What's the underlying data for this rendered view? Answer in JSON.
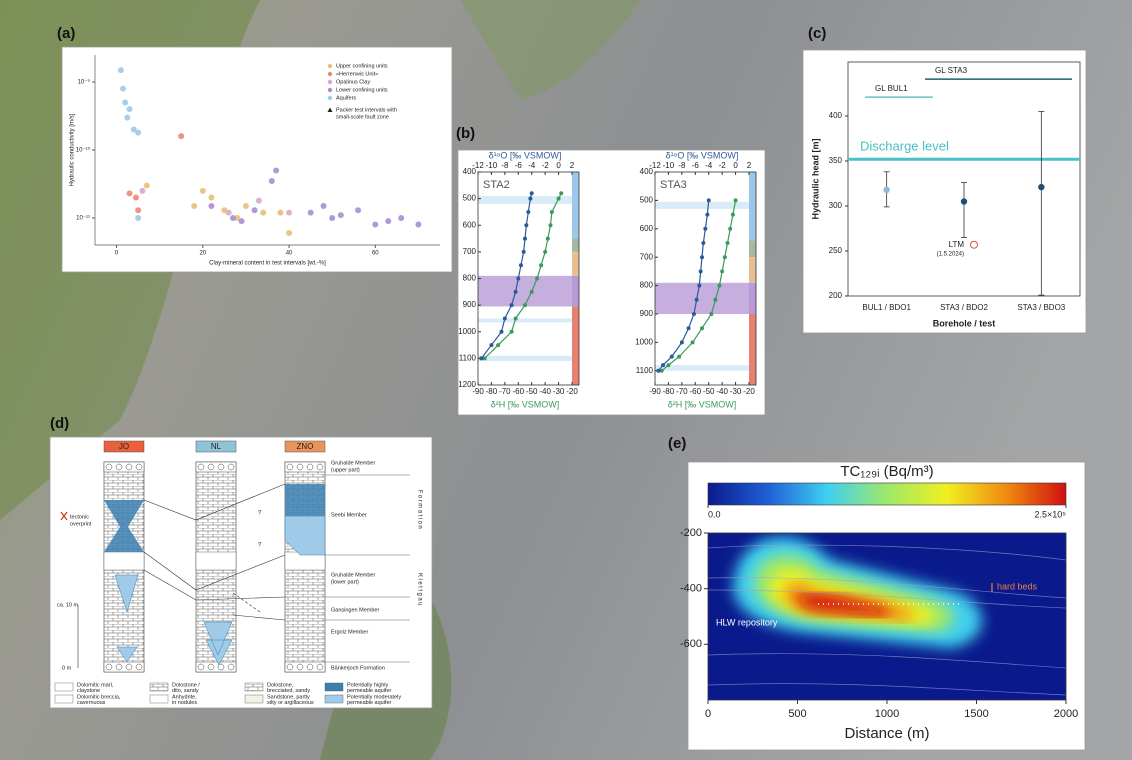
{
  "chart_data": [
    {
      "type": "scatter",
      "panel_label": "(a)",
      "xlabel": "Clay-mineral content in test intervals [wt.-%]",
      "ylabel": "Hydraulic conductivity [m/s]",
      "xlim": [
        -5,
        75
      ],
      "xticks": [
        0,
        20,
        40,
        60
      ],
      "log_y": true,
      "ylim": [
        4e-12,
        2.5e-09
      ],
      "yticks": [
        {
          "value": 1e-09,
          "label": "10⁻⁹"
        },
        {
          "value": 1e-10,
          "label": "10⁻¹⁰"
        },
        {
          "value": 1e-11,
          "label": "10⁻¹¹"
        }
      ],
      "legend": "upper right",
      "legend_note": [
        "Packer test intervals with",
        "small-scale fault zone"
      ],
      "series": [
        {
          "name": "Upper confining units",
          "color": "#e5bf78",
          "x": [
            7,
            18,
            20,
            22,
            25,
            28,
            30,
            34,
            38,
            40
          ],
          "y": [
            3e-11,
            1.5e-11,
            2.5e-11,
            2e-11,
            1.3e-11,
            1e-11,
            1.5e-11,
            1.2e-11,
            1.2e-11,
            6e-12
          ]
        },
        {
          "name": "«Herrenwis Unit»",
          "color": "#e88a70",
          "x": [
            3,
            4.5,
            5,
            15
          ],
          "y": [
            2.3e-11,
            2e-11,
            1.3e-11,
            1.6e-10
          ]
        },
        {
          "name": "Opalinus Clay",
          "color": "#dba6cc",
          "x": [
            6,
            26,
            33,
            40
          ],
          "y": [
            2.5e-11,
            1.2e-11,
            1.8e-11,
            1.2e-11
          ]
        },
        {
          "name": "Lower confining units",
          "color": "#a88ed0",
          "x": [
            22,
            27,
            29,
            32,
            36,
            37,
            45,
            48,
            50,
            52,
            56,
            60,
            63,
            66,
            70
          ],
          "y": [
            1.5e-11,
            1e-11,
            9e-12,
            1.3e-11,
            3.5e-11,
            5e-11,
            1.2e-11,
            1.5e-11,
            1e-11,
            1.1e-11,
            1.3e-11,
            8e-12,
            9e-12,
            1e-11,
            8e-12
          ]
        },
        {
          "name": "Aquifers",
          "color": "#9ccaea",
          "x": [
            1,
            1.5,
            2,
            2.5,
            3,
            4,
            5,
            5
          ],
          "y": [
            1.5e-09,
            8e-10,
            5e-10,
            3e-10,
            4e-10,
            2e-10,
            1.8e-10,
            1e-11
          ]
        }
      ]
    },
    {
      "type": "profile",
      "panel_label": "(b)",
      "label": "STA2",
      "x2label": "δ¹⁸O [‰ VSMOW]",
      "x2color": "#2a5a9a",
      "x2lim": [
        -12,
        2
      ],
      "x2ticks": [
        -12,
        -10,
        -8,
        -6,
        -4,
        -2,
        0,
        2
      ],
      "xlabel": "δ²H [‰ VSMOW]",
      "xcolor": "#3a9a5a",
      "xlim": [
        -90,
        -20
      ],
      "xticks": [
        -90,
        -80,
        -70,
        -60,
        -50,
        -40,
        -30,
        -20
      ],
      "ylim": [
        400,
        1200
      ],
      "yticks": [
        400,
        500,
        600,
        700,
        800,
        900,
        1000,
        1100,
        1200
      ],
      "y": [
        480,
        500,
        550,
        600,
        650,
        700,
        750,
        800,
        850,
        900,
        950,
        1000,
        1050,
        1100
      ],
      "series": [
        {
          "color": "#3a9a5a",
          "values": [
            -28,
            -30,
            -35,
            -36,
            -38,
            -40,
            -43,
            -46,
            -50,
            -55,
            -62,
            -65,
            -75,
            -85
          ]
        },
        {
          "color": "#2a5a9a",
          "axis": "x2",
          "values": [
            -4,
            -4.2,
            -4.5,
            -4.8,
            -5,
            -5.2,
            -5.6,
            -6,
            -6.4,
            -7,
            -8,
            -8.5,
            -10,
            -11.5
          ]
        }
      ],
      "bands": [
        {
          "from": 490,
          "to": 520,
          "color": "#cfe6f5"
        },
        {
          "from": 790,
          "to": 905,
          "color": "#b89ad6"
        },
        {
          "from": 950,
          "to": 965,
          "color": "#cfe6f5"
        },
        {
          "from": 1090,
          "to": 1110,
          "color": "#cfe6f5"
        }
      ],
      "strip": [
        {
          "from": 400,
          "to": 650,
          "color": "#9cc7e8"
        },
        {
          "from": 650,
          "to": 700,
          "color": "#a8b8a0"
        },
        {
          "from": 700,
          "to": 790,
          "color": "#e8c090"
        },
        {
          "from": 790,
          "to": 905,
          "color": "#b89ad6"
        },
        {
          "from": 905,
          "to": 1200,
          "color": "#e88070"
        }
      ]
    },
    {
      "type": "profile",
      "label": "STA3",
      "x2label": "δ¹⁸O [‰ VSMOW]",
      "x2color": "#2a5a9a",
      "x2lim": [
        -12,
        2
      ],
      "x2ticks": [
        -12,
        -10,
        -8,
        -6,
        -4,
        -2,
        0,
        2
      ],
      "xlabel": "δ²H [‰ VSMOW]",
      "xcolor": "#3a9a5a",
      "xlim": [
        -90,
        -20
      ],
      "xticks": [
        -90,
        -80,
        -70,
        -60,
        -50,
        -40,
        -30,
        -20
      ],
      "ylim": [
        400,
        1150
      ],
      "yticks": [
        400,
        500,
        600,
        700,
        800,
        900,
        1000,
        1100
      ],
      "y": [
        500,
        550,
        600,
        650,
        700,
        750,
        800,
        850,
        900,
        950,
        1000,
        1050,
        1080,
        1100
      ],
      "series": [
        {
          "color": "#3a9a5a",
          "values": [
            -30,
            -32,
            -34,
            -36,
            -38,
            -40,
            -42,
            -45,
            -48,
            -55,
            -62,
            -72,
            -80,
            -85
          ]
        },
        {
          "color": "#2a5a9a",
          "axis": "x2",
          "values": [
            -4,
            -4.2,
            -4.5,
            -4.8,
            -5,
            -5.2,
            -5.4,
            -5.8,
            -6.2,
            -7,
            -8,
            -9.5,
            -10.8,
            -11.5
          ]
        }
      ],
      "bands": [
        {
          "from": 505,
          "to": 530,
          "color": "#cfe6f5"
        },
        {
          "from": 790,
          "to": 900,
          "color": "#b89ad6"
        },
        {
          "from": 1080,
          "to": 1100,
          "color": "#cfe6f5"
        }
      ],
      "strip": [
        {
          "from": 400,
          "to": 640,
          "color": "#9cc7e8"
        },
        {
          "from": 640,
          "to": 700,
          "color": "#a8b8a0"
        },
        {
          "from": 700,
          "to": 790,
          "color": "#e8c090"
        },
        {
          "from": 790,
          "to": 900,
          "color": "#b89ad6"
        },
        {
          "from": 900,
          "to": 1150,
          "color": "#e88070"
        }
      ]
    },
    {
      "type": "errorbar",
      "panel_label": "(c)",
      "categories": [
        "BUL1 / BDO1",
        "STA3 / BDO2",
        "STA3 / BDO3"
      ],
      "values": [
        318,
        305,
        321
      ],
      "error_low": [
        299,
        265,
        201
      ],
      "error_high": [
        338,
        326,
        405
      ],
      "colors": [
        "#8fb8d8",
        "#1f4e79",
        "#1f4e79"
      ],
      "ylim": [
        200,
        460
      ],
      "yticks": [
        200,
        250,
        300,
        350,
        400
      ],
      "ylabel": "Hydraulic head [m]",
      "xlabel": "Borehole / test",
      "reference_lines": [
        {
          "label": "Discharge level",
          "value": 352,
          "color": "#4bbfc4"
        },
        {
          "label": "GL BUL1",
          "value": 421,
          "color": "#6ec0c0"
        },
        {
          "label": "GL STA3",
          "value": 441,
          "color": "#1f5f6a"
        }
      ],
      "extra_point": {
        "labels": [
          "LTM",
          "(1.5.2024)"
        ],
        "value": 257,
        "color": "#e0503a"
      }
    },
    {
      "type": "heatmap",
      "panel_label": "(e)",
      "title": "TC₁₂₉ᵢ (Bq/m³)",
      "colorbar": {
        "lim": [
          0,
          250000
        ],
        "ticks": [
          {
            "value": 0,
            "label": "0.0"
          },
          {
            "value": 250000,
            "label": "2.5×10⁵"
          }
        ],
        "colors": [
          "#0a1a8c",
          "#1f5fd6",
          "#3fd0f0",
          "#9ee86a",
          "#f0f020",
          "#f08a10",
          "#d01010"
        ]
      },
      "xlim": [
        0,
        2000
      ],
      "xticks": [
        0,
        500,
        1000,
        1500,
        2000
      ],
      "ylim": [
        -800,
        -200
      ],
      "yticks": [
        -200,
        -400,
        -600
      ],
      "xlabel": "Distance (m)",
      "annotations": [
        "hard beds",
        "HLW repository"
      ]
    }
  ],
  "diagram": {
    "panel_label": "(d)",
    "columns": [
      "JO",
      "NL",
      "ZNO"
    ],
    "column_colors": [
      "#e8603c",
      "#8fc4d8",
      "#e8945a"
    ],
    "units": [
      [
        "Gruhalde Member",
        "(upper part)"
      ],
      [
        "Seebi Member"
      ],
      [
        "Gruhalde Member",
        "(lower part)"
      ],
      [
        "Gansingen Member"
      ],
      [
        "Ergolz Member"
      ],
      [
        "Bänkerjoch Formation"
      ]
    ],
    "side_labels": [
      "Formation",
      "Klettgau"
    ],
    "tectonic": [
      "tectonic",
      "overprint"
    ],
    "scale_top": "ca. 10 m",
    "scale_bottom": "0 m",
    "query": "?",
    "legend": [
      [
        "Dolomitic marl,",
        "claystone"
      ],
      [
        "Dolostone /",
        "dito, sandy"
      ],
      [
        "Dolostone,",
        "brecciated, sandy"
      ],
      [
        "Potentially highly",
        "permeable aquifer"
      ],
      [
        "Dolomitic breccia,",
        "cavernuous"
      ],
      [
        "Anhydrite,",
        "in nodules"
      ],
      [
        "Sandstone, partly",
        "silty or argillaceous"
      ],
      [
        "Potentially moderately",
        "permeable aquifer"
      ]
    ]
  }
}
